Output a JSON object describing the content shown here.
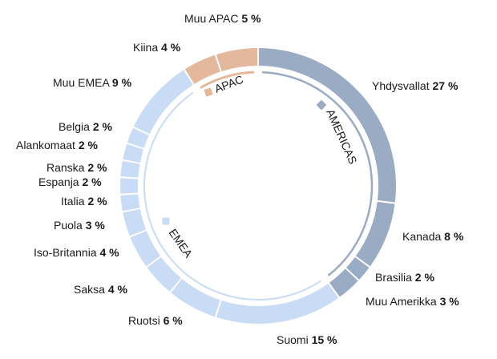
{
  "chart_data": {
    "type": "pie",
    "title": "",
    "colors": {
      "AMERICAS": "#9aabc4",
      "EMEA": "#c9dcf5",
      "APAC": "#e3b89c"
    },
    "regions": [
      {
        "name": "AMERICAS",
        "value": 40
      },
      {
        "name": "EMEA",
        "value": 51
      },
      {
        "name": "APAC",
        "value": 9
      }
    ],
    "slices": [
      {
        "label": "Yhdysvallat",
        "value": 27,
        "pct_text": "27 %",
        "region": "AMERICAS"
      },
      {
        "label": "Kanada",
        "value": 8,
        "pct_text": "8 %",
        "region": "AMERICAS"
      },
      {
        "label": "Brasilia",
        "value": 2,
        "pct_text": "2 %",
        "region": "AMERICAS"
      },
      {
        "label": "Muu Amerikka",
        "value": 3,
        "pct_text": "3 %",
        "region": "AMERICAS"
      },
      {
        "label": "Suomi",
        "value": 15,
        "pct_text": "15 %",
        "region": "EMEA"
      },
      {
        "label": "Ruotsi",
        "value": 6,
        "pct_text": "6 %",
        "region": "EMEA"
      },
      {
        "label": "Saksa",
        "value": 4,
        "pct_text": "4 %",
        "region": "EMEA"
      },
      {
        "label": "Iso-Britannia",
        "value": 4,
        "pct_text": "4 %",
        "region": "EMEA"
      },
      {
        "label": "Puola",
        "value": 3,
        "pct_text": "3 %",
        "region": "EMEA"
      },
      {
        "label": "Italia",
        "value": 2,
        "pct_text": "2 %",
        "region": "EMEA"
      },
      {
        "label": "Espanja",
        "value": 2,
        "pct_text": "2 %",
        "region": "EMEA"
      },
      {
        "label": "Ranska",
        "value": 2,
        "pct_text": "2 %",
        "region": "EMEA"
      },
      {
        "label": "Alankomaat",
        "value": 2,
        "pct_text": "2 %",
        "region": "EMEA"
      },
      {
        "label": "Belgia",
        "value": 2,
        "pct_text": "2 %",
        "region": "EMEA"
      },
      {
        "label": "Muu EMEA",
        "value": 9,
        "pct_text": "9 %",
        "region": "EMEA"
      },
      {
        "label": "Kiina",
        "value": 4,
        "pct_text": "4 %",
        "region": "APAC"
      },
      {
        "label": "Muu APAC",
        "value": 5,
        "pct_text": "5 %",
        "region": "APAC"
      }
    ]
  }
}
